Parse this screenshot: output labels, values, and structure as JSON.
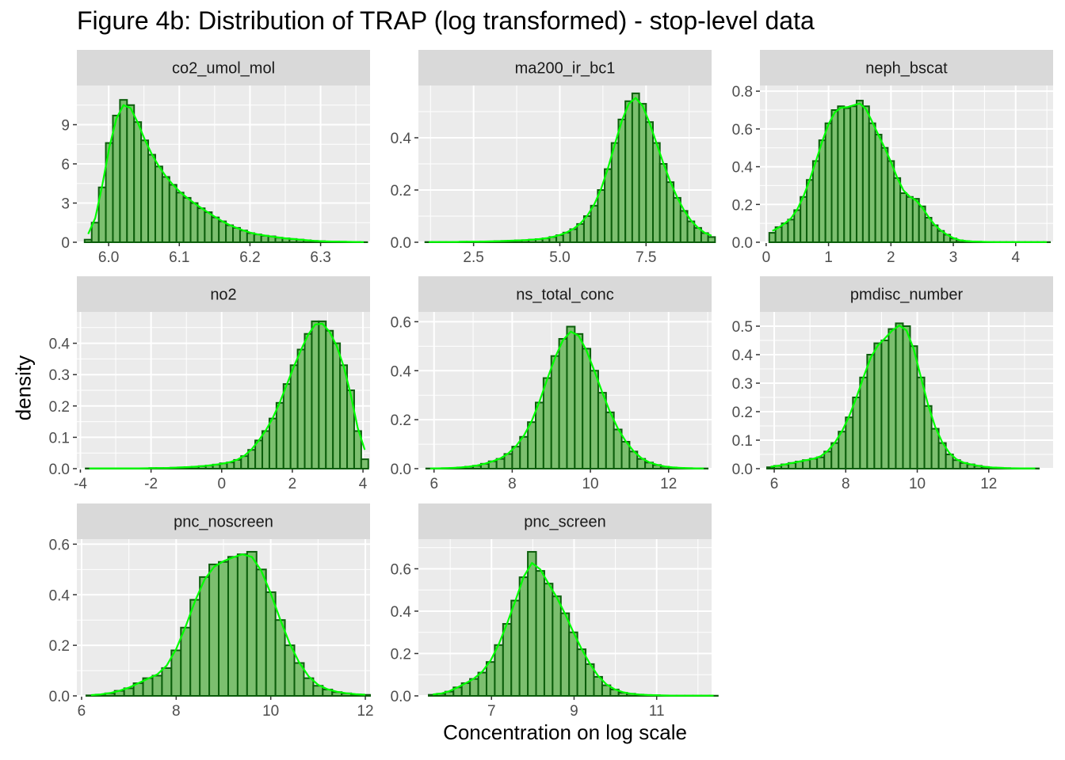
{
  "title": "Figure 4b: Distribution of TRAP (log transformed) - stop-level data",
  "xlabel": "Concentration on log scale",
  "ylabel": "density",
  "colors": {
    "panel_bg": "#EBEBEB",
    "strip_bg": "#D9D9D9",
    "grid_major": "#FFFFFF",
    "bar_fill": "#7CBF6F",
    "bar_outline": "#0B5E0B",
    "density_line": "#00FF00",
    "tick_text": "#4D4D4D"
  },
  "chart_data": [
    {
      "type": "histogram",
      "facet": "co2_umol_mol",
      "xlim": [
        5.955,
        6.37
      ],
      "ylim": [
        0,
        12
      ],
      "xticks": [
        6.0,
        6.1,
        6.2,
        6.3
      ],
      "xtick_labels": [
        "6.0",
        "6.1",
        "6.2",
        "6.3"
      ],
      "yticks": [
        0,
        3,
        6,
        9
      ],
      "ytick_labels": [
        "0",
        "3",
        "6",
        "9"
      ],
      "bins": {
        "start": 5.966,
        "width": 0.01
      },
      "values": [
        0.2,
        1.5,
        4.2,
        7.6,
        9.7,
        10.9,
        10.5,
        9.2,
        7.8,
        6.7,
        5.8,
        5.0,
        4.4,
        3.8,
        3.4,
        3.0,
        2.6,
        2.3,
        1.9,
        1.6,
        1.3,
        1.1,
        0.9,
        0.7,
        0.6,
        0.5,
        0.45,
        0.35,
        0.3,
        0.25,
        0.2,
        0.15,
        0.1,
        0.08,
        0.06,
        0.05,
        0.04,
        0.03,
        0.02,
        0.01
      ]
    },
    {
      "type": "histogram",
      "facet": "ma200_ir_bc1",
      "xlim": [
        0.9,
        9.4
      ],
      "ylim": [
        0,
        0.6
      ],
      "xticks": [
        2.5,
        5.0,
        7.5
      ],
      "xtick_labels": [
        "2.5",
        "5.0",
        "7.5"
      ],
      "yticks": [
        0.0,
        0.2,
        0.4
      ],
      "ytick_labels": [
        "0.0",
        "0.2",
        "0.4"
      ],
      "bins": {
        "start": 1.1,
        "width": 0.2
      },
      "values": [
        0.001,
        0.001,
        0.001,
        0.001,
        0.001,
        0.002,
        0.002,
        0.002,
        0.003,
        0.003,
        0.004,
        0.005,
        0.006,
        0.007,
        0.008,
        0.01,
        0.012,
        0.015,
        0.02,
        0.027,
        0.037,
        0.05,
        0.07,
        0.1,
        0.14,
        0.2,
        0.28,
        0.38,
        0.47,
        0.54,
        0.57,
        0.53,
        0.46,
        0.38,
        0.3,
        0.23,
        0.17,
        0.12,
        0.08,
        0.055,
        0.035,
        0.02
      ]
    },
    {
      "type": "histogram",
      "facet": "neph_bscat",
      "xlim": [
        -0.1,
        4.6
      ],
      "ylim": [
        0,
        0.83
      ],
      "xticks": [
        0,
        1,
        2,
        3,
        4
      ],
      "xtick_labels": [
        "0",
        "1",
        "2",
        "3",
        "4"
      ],
      "yticks": [
        0.0,
        0.2,
        0.4,
        0.6,
        0.8
      ],
      "ytick_labels": [
        "0.0",
        "0.2",
        "0.4",
        "0.6",
        "0.8"
      ],
      "bins": {
        "start": 0.05,
        "width": 0.1
      },
      "values": [
        0.05,
        0.08,
        0.1,
        0.12,
        0.17,
        0.24,
        0.33,
        0.43,
        0.54,
        0.63,
        0.7,
        0.72,
        0.71,
        0.72,
        0.75,
        0.72,
        0.63,
        0.57,
        0.5,
        0.43,
        0.34,
        0.26,
        0.24,
        0.23,
        0.19,
        0.13,
        0.09,
        0.06,
        0.04,
        0.02,
        0.01,
        0.006,
        0.004,
        0.003,
        0.002,
        0.001,
        0.001,
        0.001,
        0.001,
        0.001,
        0.001,
        0.001,
        0.001,
        0.001,
        0.001
      ]
    },
    {
      "type": "histogram",
      "facet": "no2",
      "xlim": [
        -4.1,
        4.2
      ],
      "ylim": [
        0,
        0.5
      ],
      "xticks": [
        -4,
        -2,
        0,
        2,
        4
      ],
      "xtick_labels": [
        "-4",
        "-2",
        "0",
        "2",
        "4"
      ],
      "yticks": [
        0.0,
        0.1,
        0.2,
        0.3,
        0.4
      ],
      "ytick_labels": [
        "0.0",
        "0.1",
        "0.2",
        "0.3",
        "0.4"
      ],
      "bins": {
        "start": -3.85,
        "width": 0.2
      },
      "values": [
        0.001,
        0.001,
        0.001,
        0.001,
        0.001,
        0.001,
        0.001,
        0.001,
        0.001,
        0.002,
        0.002,
        0.002,
        0.003,
        0.004,
        0.005,
        0.006,
        0.008,
        0.01,
        0.013,
        0.017,
        0.02,
        0.028,
        0.04,
        0.06,
        0.09,
        0.12,
        0.16,
        0.21,
        0.27,
        0.33,
        0.38,
        0.43,
        0.47,
        0.47,
        0.44,
        0.4,
        0.33,
        0.25,
        0.12,
        0.03
      ]
    },
    {
      "type": "histogram",
      "facet": "ns_total_conc",
      "xlim": [
        5.6,
        13.1
      ],
      "ylim": [
        0,
        0.64
      ],
      "xticks": [
        6,
        8,
        10,
        12
      ],
      "xtick_labels": [
        "6",
        "8",
        "10",
        "12"
      ],
      "yticks": [
        0.0,
        0.2,
        0.4,
        0.6
      ],
      "ytick_labels": [
        "0.0",
        "0.2",
        "0.4",
        "0.6"
      ],
      "bins": {
        "start": 5.8,
        "width": 0.2
      },
      "values": [
        0.001,
        0.001,
        0.002,
        0.003,
        0.005,
        0.008,
        0.012,
        0.02,
        0.03,
        0.04,
        0.06,
        0.09,
        0.13,
        0.19,
        0.27,
        0.37,
        0.46,
        0.53,
        0.58,
        0.55,
        0.49,
        0.4,
        0.31,
        0.23,
        0.16,
        0.11,
        0.07,
        0.04,
        0.025,
        0.015,
        0.008,
        0.005,
        0.003,
        0.002,
        0.001,
        0.001
      ]
    },
    {
      "type": "histogram",
      "facet": "pmdisc_number",
      "xlim": [
        5.6,
        13.8
      ],
      "ylim": [
        0,
        0.55
      ],
      "xticks": [
        6,
        8,
        10,
        12
      ],
      "xtick_labels": [
        "6",
        "8",
        "10",
        "12"
      ],
      "yticks": [
        0.0,
        0.1,
        0.2,
        0.3,
        0.4,
        0.5
      ],
      "ytick_labels": [
        "0.0",
        "0.1",
        "0.2",
        "0.3",
        "0.4",
        "0.5"
      ],
      "bins": {
        "start": 5.8,
        "width": 0.2
      },
      "values": [
        0.005,
        0.01,
        0.015,
        0.02,
        0.025,
        0.03,
        0.035,
        0.04,
        0.06,
        0.09,
        0.13,
        0.18,
        0.25,
        0.32,
        0.4,
        0.44,
        0.45,
        0.49,
        0.51,
        0.5,
        0.43,
        0.32,
        0.22,
        0.14,
        0.09,
        0.05,
        0.03,
        0.02,
        0.015,
        0.01,
        0.006,
        0.004,
        0.003,
        0.002,
        0.001,
        0.001,
        0.001,
        0.001
      ]
    },
    {
      "type": "histogram",
      "facet": "pnc_noscreen",
      "xlim": [
        5.9,
        12.1
      ],
      "ylim": [
        0,
        0.62
      ],
      "xticks": [
        6,
        8,
        10,
        12
      ],
      "xtick_labels": [
        "6",
        "8",
        "10",
        "12"
      ],
      "yticks": [
        0.0,
        0.2,
        0.4,
        0.6
      ],
      "ytick_labels": [
        "0.0",
        "0.2",
        "0.4",
        "0.6"
      ],
      "bins": {
        "start": 6.1,
        "width": 0.2
      },
      "values": [
        0.002,
        0.005,
        0.01,
        0.02,
        0.03,
        0.05,
        0.07,
        0.08,
        0.11,
        0.18,
        0.27,
        0.38,
        0.47,
        0.52,
        0.53,
        0.55,
        0.56,
        0.57,
        0.5,
        0.41,
        0.3,
        0.2,
        0.13,
        0.07,
        0.04,
        0.025,
        0.015,
        0.01,
        0.006,
        0.004
      ]
    },
    {
      "type": "histogram",
      "facet": "pnc_screen",
      "xlim": [
        5.2,
        12.3
      ],
      "ylim": [
        0,
        0.74
      ],
      "xticks": [
        6.97,
        8.97,
        10.97
      ],
      "xtick_labels": [
        "7",
        "9",
        "11"
      ],
      "yticks": [
        0.0,
        0.2,
        0.4,
        0.6
      ],
      "ytick_labels": [
        "0.0",
        "0.2",
        "0.4",
        "0.6"
      ],
      "bins": {
        "start": 5.45,
        "width": 0.2
      },
      "values": [
        0.005,
        0.01,
        0.02,
        0.04,
        0.06,
        0.08,
        0.11,
        0.16,
        0.24,
        0.34,
        0.45,
        0.56,
        0.68,
        0.59,
        0.53,
        0.47,
        0.39,
        0.3,
        0.22,
        0.15,
        0.09,
        0.05,
        0.03,
        0.015,
        0.01,
        0.006,
        0.004,
        0.003,
        0.002,
        0.001,
        0.001,
        0.001,
        0.001,
        0.001,
        0.001
      ]
    }
  ]
}
